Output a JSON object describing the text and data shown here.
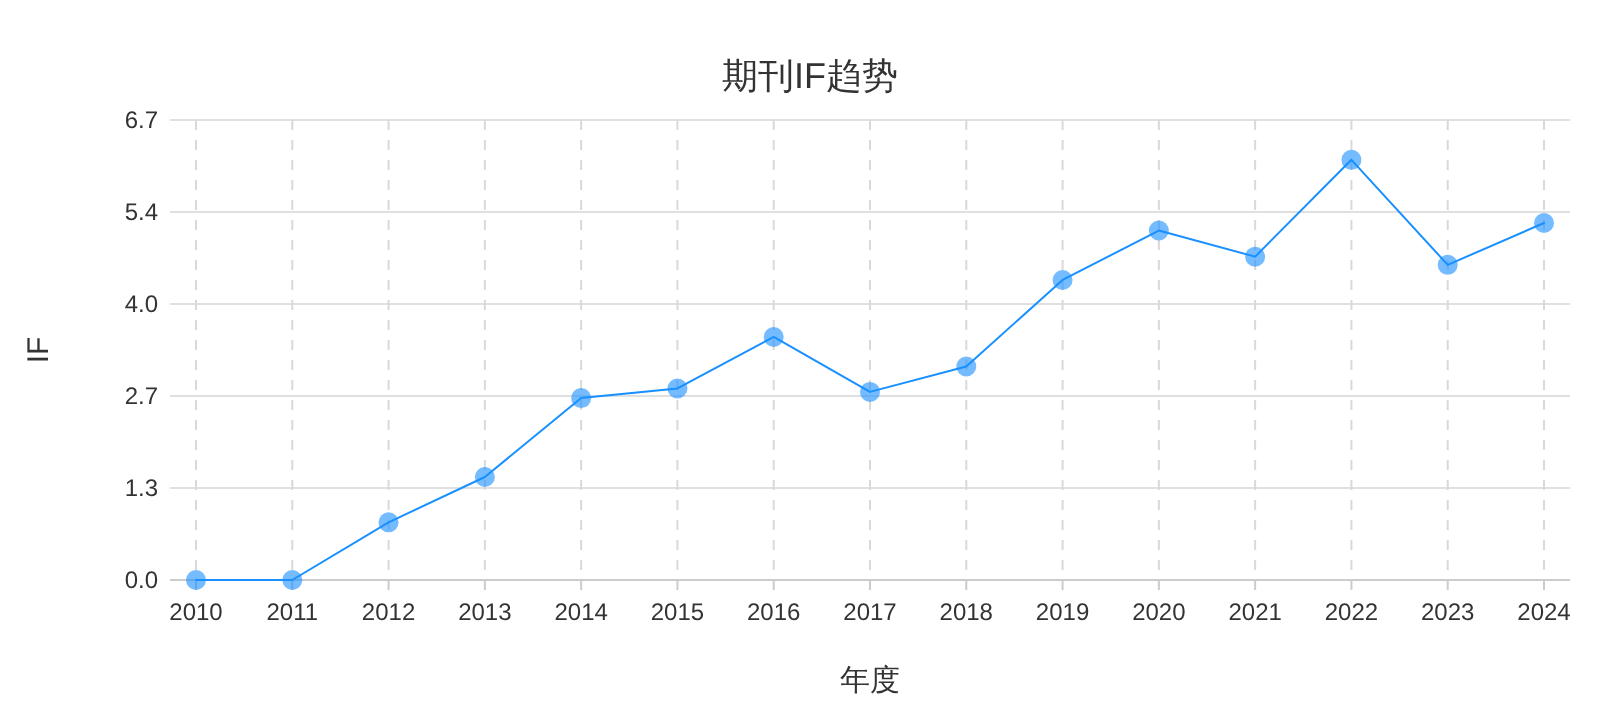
{
  "chart_data": {
    "type": "line",
    "title": "期刊IF趋势",
    "xlabel": "年度",
    "ylabel": "IF",
    "categories": [
      "2010",
      "2011",
      "2012",
      "2013",
      "2014",
      "2015",
      "2016",
      "2017",
      "2018",
      "2019",
      "2020",
      "2021",
      "2022",
      "2023",
      "2024"
    ],
    "series": [
      {
        "color": "#1890ff",
        "values": [
          0,
          0,
          0.84,
          1.5,
          2.65,
          2.79,
          3.54,
          2.74,
          3.11,
          4.37,
          5.09,
          4.71,
          6.12,
          4.59,
          5.2
        ]
      }
    ],
    "ylim": [
      0,
      6.7
    ],
    "yticks": [
      {
        "value": 0,
        "label": "0.0"
      },
      {
        "value": 1.34,
        "label": "1.3"
      },
      {
        "value": 2.68,
        "label": "2.7"
      },
      {
        "value": 4.02,
        "label": "4.0"
      },
      {
        "value": 5.36,
        "label": "5.4"
      },
      6.7
    ],
    "grid": true,
    "marker": "circle",
    "line_style": "solid"
  }
}
